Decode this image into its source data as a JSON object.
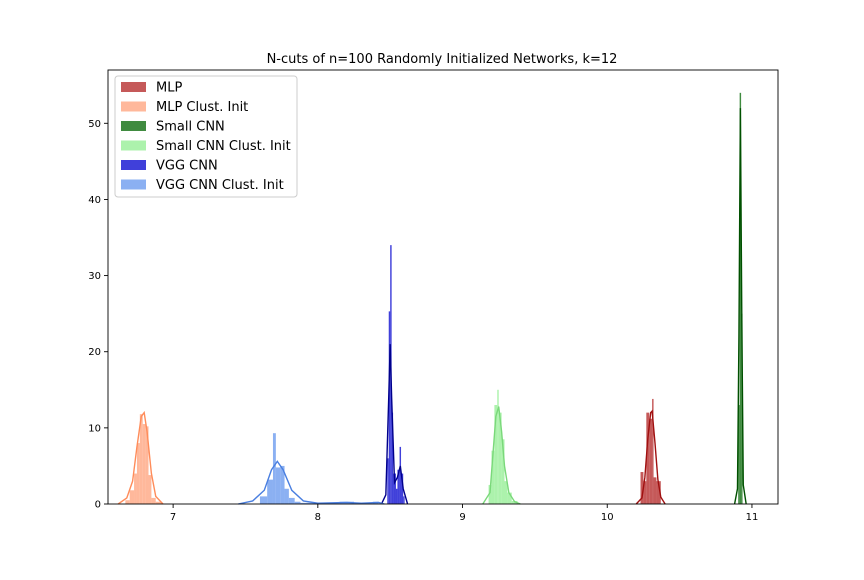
{
  "chart_data": {
    "type": "histogram",
    "title": "N-cuts of n=100 Randomly Initialized Networks, k=12",
    "xlabel": "",
    "ylabel": "",
    "xlim": [
      6.55,
      11.18
    ],
    "ylim": [
      0,
      57
    ],
    "xticks": [
      "7",
      "8",
      "9",
      "10",
      "11"
    ],
    "yticks": [
      "0",
      "10",
      "20",
      "30",
      "40",
      "50"
    ],
    "grid": false,
    "legend_position": "top-left",
    "series": [
      {
        "name": "MLP",
        "color": "#b22222",
        "kde_color": "#a01010",
        "bins": [
          [
            10.23,
            10.25,
            4.2
          ],
          [
            10.25,
            10.27,
            3.0
          ],
          [
            10.27,
            10.29,
            12.0
          ],
          [
            10.29,
            10.31,
            11.2
          ],
          [
            10.31,
            10.32,
            13.8
          ],
          [
            10.32,
            10.34,
            3.5
          ],
          [
            10.34,
            10.37,
            3.0
          ]
        ],
        "kde": [
          [
            10.2,
            0
          ],
          [
            10.24,
            0.8
          ],
          [
            10.26,
            3.5
          ],
          [
            10.28,
            8.5
          ],
          [
            10.3,
            12.0
          ],
          [
            10.31,
            12.2
          ],
          [
            10.33,
            8.0
          ],
          [
            10.35,
            3.2
          ],
          [
            10.37,
            0.9
          ],
          [
            10.4,
            0
          ]
        ]
      },
      {
        "name": "MLP Clust. Init",
        "color": "#ffa07a",
        "kde_color": "#ff8c5a",
        "bins": [
          [
            6.67,
            6.7,
            0.5
          ],
          [
            6.7,
            6.73,
            1.8
          ],
          [
            6.73,
            6.75,
            4.0
          ],
          [
            6.75,
            6.77,
            8.0
          ],
          [
            6.77,
            6.79,
            11.8
          ],
          [
            6.79,
            6.81,
            10.5
          ],
          [
            6.81,
            6.83,
            10.2
          ],
          [
            6.83,
            6.85,
            3.8
          ],
          [
            6.85,
            6.88,
            0.8
          ],
          [
            6.88,
            6.92,
            0.3
          ]
        ],
        "kde": [
          [
            6.62,
            0
          ],
          [
            6.68,
            0.8
          ],
          [
            6.72,
            3.0
          ],
          [
            6.75,
            7.5
          ],
          [
            6.78,
            11.5
          ],
          [
            6.8,
            12.0
          ],
          [
            6.82,
            9.5
          ],
          [
            6.85,
            4.0
          ],
          [
            6.88,
            1.0
          ],
          [
            6.93,
            0
          ]
        ]
      },
      {
        "name": "Small CNN",
        "color": "#006400",
        "kde_color": "#005000",
        "bins": [
          [
            10.905,
            10.915,
            13.0
          ],
          [
            10.915,
            10.925,
            54.0
          ],
          [
            10.925,
            10.935,
            25.0
          ]
        ],
        "kde": [
          [
            10.88,
            0
          ],
          [
            10.9,
            2.0
          ],
          [
            10.91,
            22.0
          ],
          [
            10.92,
            52.0
          ],
          [
            10.93,
            24.0
          ],
          [
            10.94,
            2.5
          ],
          [
            10.96,
            0
          ]
        ]
      },
      {
        "name": "Small CNN Clust. Init",
        "color": "#90ee90",
        "kde_color": "#7ad87a",
        "bins": [
          [
            9.18,
            9.2,
            2.5
          ],
          [
            9.2,
            9.22,
            7.0
          ],
          [
            9.22,
            9.24,
            13.0
          ],
          [
            9.24,
            9.25,
            15.0
          ],
          [
            9.25,
            9.27,
            12.0
          ],
          [
            9.27,
            9.29,
            8.5
          ],
          [
            9.29,
            9.31,
            3.0
          ],
          [
            9.31,
            9.34,
            1.5
          ],
          [
            9.34,
            9.38,
            0.4
          ]
        ],
        "kde": [
          [
            9.14,
            0
          ],
          [
            9.19,
            1.5
          ],
          [
            9.21,
            6.5
          ],
          [
            9.23,
            11.5
          ],
          [
            9.25,
            12.8
          ],
          [
            9.27,
            9.5
          ],
          [
            9.29,
            5.0
          ],
          [
            9.32,
            1.5
          ],
          [
            9.36,
            0.3
          ],
          [
            9.4,
            0
          ]
        ]
      },
      {
        "name": "VGG CNN",
        "color": "#0000cd",
        "kde_color": "#00008b",
        "bins": [
          [
            8.48,
            8.49,
            6.0
          ],
          [
            8.49,
            8.5,
            25.3
          ],
          [
            8.5,
            8.51,
            34.0
          ],
          [
            8.51,
            8.52,
            12.0
          ],
          [
            8.52,
            8.54,
            4.0
          ],
          [
            8.54,
            8.55,
            2.0
          ],
          [
            8.55,
            8.565,
            4.5
          ],
          [
            8.565,
            8.575,
            7.5
          ],
          [
            8.575,
            8.59,
            4.0
          ],
          [
            8.59,
            8.6,
            1.0
          ]
        ],
        "kde": [
          [
            8.44,
            0
          ],
          [
            8.47,
            1.2
          ],
          [
            8.49,
            14.0
          ],
          [
            8.5,
            21.0
          ],
          [
            8.51,
            14.0
          ],
          [
            8.53,
            2.8
          ],
          [
            8.55,
            3.5
          ],
          [
            8.57,
            5.0
          ],
          [
            8.59,
            2.0
          ],
          [
            8.62,
            0
          ]
        ]
      },
      {
        "name": "VGG CNN Clust. Init",
        "color": "#6495ed",
        "kde_color": "#4a7fe0",
        "bins": [
          [
            7.6,
            7.65,
            1.0
          ],
          [
            7.65,
            7.69,
            3.2
          ],
          [
            7.69,
            7.71,
            9.3
          ],
          [
            7.71,
            7.74,
            4.8
          ],
          [
            7.74,
            7.77,
            5.0
          ],
          [
            7.77,
            7.8,
            2.0
          ],
          [
            7.8,
            7.84,
            0.8
          ],
          [
            7.84,
            7.88,
            0.3
          ],
          [
            7.88,
            8.15,
            0.15
          ],
          [
            8.15,
            8.25,
            0.3
          ],
          [
            8.38,
            8.42,
            0.3
          ]
        ],
        "kde": [
          [
            7.45,
            0
          ],
          [
            7.55,
            0.4
          ],
          [
            7.63,
            1.8
          ],
          [
            7.68,
            4.5
          ],
          [
            7.72,
            5.6
          ],
          [
            7.76,
            4.5
          ],
          [
            7.82,
            1.8
          ],
          [
            7.9,
            0.4
          ],
          [
            8.0,
            0.1
          ],
          [
            8.2,
            0.2
          ],
          [
            8.3,
            0.1
          ],
          [
            8.42,
            0.2
          ],
          [
            8.46,
            0
          ]
        ]
      }
    ]
  }
}
